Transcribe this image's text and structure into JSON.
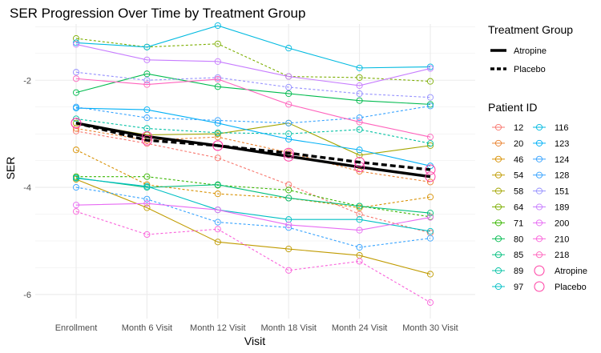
{
  "chart_data": {
    "type": "line",
    "title": "SER Progression Over Time by Treatment Group",
    "xlabel": "Visit",
    "ylabel": "SER",
    "categories": [
      "Enrollment",
      "Month 6 Visit",
      "Month 12 Visit",
      "Month 18 Visit",
      "Month 24 Visit",
      "Month 30 Visit"
    ],
    "ylim": [
      -6.45,
      -0.95
    ],
    "yticks": [
      -2,
      -4,
      -6
    ],
    "grid": true,
    "legend_placement": "right",
    "legend_group_title": "Treatment Group",
    "legend_patient_title": "Patient ID",
    "group_summary": [
      {
        "name": "Atropine",
        "values": [
          -2.8,
          -3.05,
          -3.22,
          -3.42,
          -3.62,
          -3.8
        ]
      },
      {
        "name": "Placebo",
        "values": [
          -2.8,
          -3.12,
          -3.22,
          -3.36,
          -3.53,
          -3.67
        ]
      }
    ],
    "series": [
      {
        "name": "12",
        "group": "Placebo",
        "color": "#F8766D",
        "values": [
          -2.95,
          -3.18,
          -3.45,
          -3.95,
          -4.5,
          -4.85
        ]
      },
      {
        "name": "20",
        "group": "Placebo",
        "color": "#EA8331",
        "values": [
          -2.9,
          -3.12,
          -3.06,
          -3.35,
          -3.7,
          -3.9
        ]
      },
      {
        "name": "46",
        "group": "Placebo",
        "color": "#D89000",
        "values": [
          -3.3,
          -3.95,
          -4.12,
          -4.2,
          -4.38,
          -4.18
        ]
      },
      {
        "name": "54",
        "group": "Atropine",
        "color": "#C09B00",
        "values": [
          -3.85,
          -4.38,
          -5.02,
          -5.15,
          -5.27,
          -5.62
        ]
      },
      {
        "name": "58",
        "group": "Atropine",
        "color": "#A3A500",
        "values": [
          -2.8,
          -3.02,
          -3.0,
          -2.8,
          -3.4,
          -3.22
        ]
      },
      {
        "name": "64",
        "group": "Placebo",
        "color": "#7CAE00",
        "values": [
          -1.22,
          -1.38,
          -1.32,
          -1.93,
          -1.95,
          -2.02
        ]
      },
      {
        "name": "71",
        "group": "Placebo",
        "color": "#39B600",
        "values": [
          -3.8,
          -3.8,
          -3.96,
          -4.05,
          -4.35,
          -4.55
        ]
      },
      {
        "name": "80",
        "group": "Atropine",
        "color": "#00BB4E",
        "values": [
          -2.23,
          -1.88,
          -2.12,
          -2.25,
          -2.38,
          -2.45
        ]
      },
      {
        "name": "85",
        "group": "Atropine",
        "color": "#00BF7D",
        "values": [
          -3.82,
          -4.0,
          -3.95,
          -4.2,
          -4.35,
          -4.48
        ]
      },
      {
        "name": "89",
        "group": "Placebo",
        "color": "#00C1A3",
        "values": [
          -2.72,
          -2.9,
          -2.98,
          -3.0,
          -2.92,
          -3.18
        ]
      },
      {
        "name": "97",
        "group": "Atropine",
        "color": "#00BFC4",
        "values": [
          -3.83,
          -3.98,
          -4.42,
          -4.6,
          -4.6,
          -4.82
        ]
      },
      {
        "name": "116",
        "group": "Atropine",
        "color": "#00BAE0",
        "values": [
          -1.3,
          -1.38,
          -0.98,
          -1.4,
          -1.77,
          -1.75
        ]
      },
      {
        "name": "123",
        "group": "Atropine",
        "color": "#00B0F6",
        "values": [
          -2.52,
          -2.55,
          -2.8,
          -3.1,
          -3.3,
          -3.6
        ]
      },
      {
        "name": "124",
        "group": "Placebo",
        "color": "#35A2FF",
        "values": [
          -4.0,
          -4.22,
          -4.65,
          -4.75,
          -5.12,
          -4.95
        ]
      },
      {
        "name": "128",
        "group": "Placebo",
        "color": "#35A2FF",
        "values": [
          -2.5,
          -2.7,
          -2.75,
          -2.8,
          -2.7,
          -2.48
        ]
      },
      {
        "name": "151",
        "group": "Placebo",
        "color": "#9590FF",
        "values": [
          -1.85,
          -2.0,
          -1.95,
          -2.13,
          -2.25,
          -2.32
        ]
      },
      {
        "name": "189",
        "group": "Atropine",
        "color": "#C77CFF",
        "values": [
          -1.33,
          -1.62,
          -1.65,
          -1.93,
          -2.1,
          -1.78
        ]
      },
      {
        "name": "200",
        "group": "Atropine",
        "color": "#E76BF3",
        "values": [
          -4.33,
          -4.3,
          -4.42,
          -4.7,
          -4.8,
          -4.56
        ]
      },
      {
        "name": "210",
        "group": "Placebo",
        "color": "#FA62DB",
        "values": [
          -4.45,
          -4.88,
          -4.78,
          -5.55,
          -5.38,
          -6.15
        ]
      },
      {
        "name": "218",
        "group": "Atropine",
        "color": "#FF62BC",
        "values": [
          -1.97,
          -2.08,
          -1.98,
          -2.45,
          -2.78,
          -3.06
        ]
      }
    ]
  }
}
